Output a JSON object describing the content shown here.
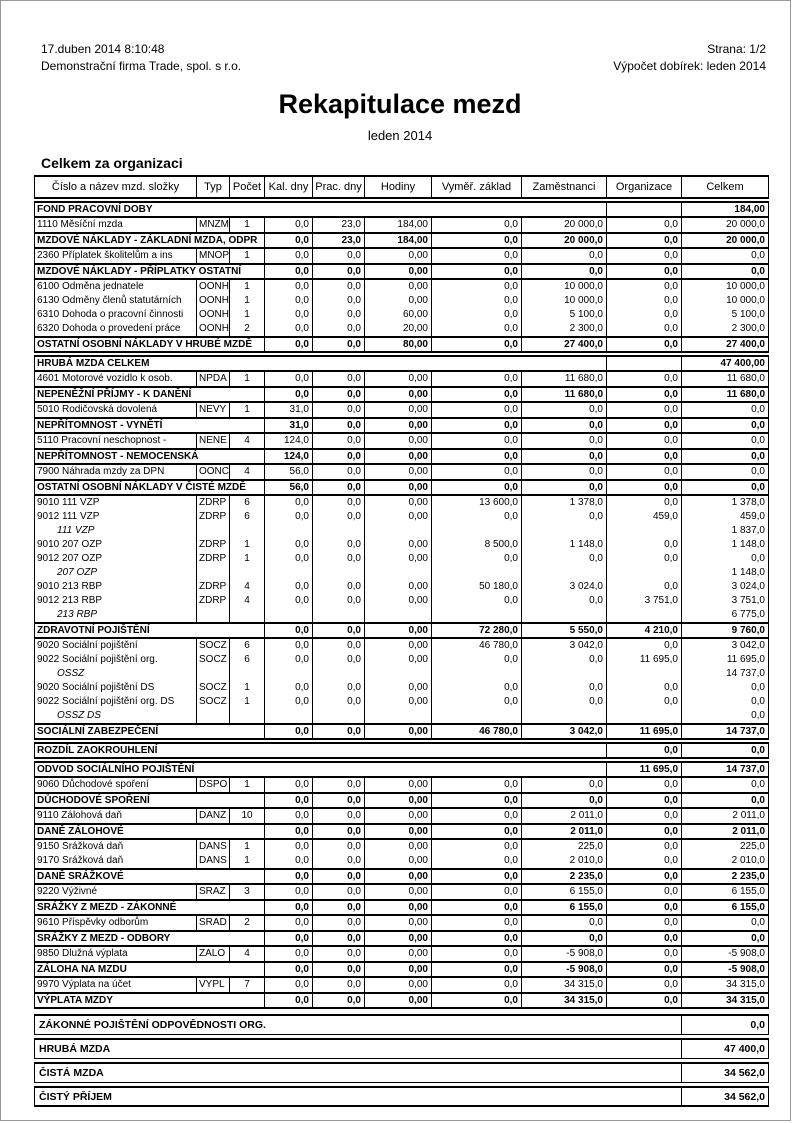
{
  "page": {
    "printed_at": "17.duben 2014  8:10:48",
    "company": "Demonstrační firma Trade, spol. s r.o.",
    "page_label": "Strana: 1/2",
    "calc_label": "Výpočet dobírek: leden 2014",
    "title": "Rekapitulace mezd",
    "subtitle": "leden 2014",
    "section_heading": "Celkem za organizaci"
  },
  "table": {
    "columns": [
      "Číslo a název mzd. složky",
      "Typ",
      "Počet",
      "Kal. dny",
      "Prac. dny",
      "Hodiny",
      "Vyměř. základ",
      "Zaměstnanci",
      "Organizace",
      "Celkem"
    ],
    "rows": [
      {
        "t": "w",
        "name": "FOND PRACOVNÍ DOBY",
        "org": "",
        "cel": "184,00"
      },
      {
        "t": "d",
        "name": "1110 Měsíční mzda",
        "typ": "MNZM",
        "poc": "1",
        "c": [
          "0,0",
          "23,0",
          "184,00",
          "0,0",
          "20 000,0",
          "0,0",
          "20 000,0"
        ]
      },
      {
        "t": "t",
        "name": "MZDOVÉ NÁKLADY - ZÁKLADNÍ MZDA, ODPR",
        "c": [
          "0,0",
          "23,0",
          "184,00",
          "0,0",
          "20 000,0",
          "0,0",
          "20 000,0"
        ]
      },
      {
        "t": "d",
        "name": "2360 Příplatek školitelům a ins",
        "typ": "MNOP",
        "poc": "1",
        "c": [
          "0,0",
          "0,0",
          "0,00",
          "0,0",
          "0,0",
          "0,0",
          "0,0"
        ]
      },
      {
        "t": "t",
        "name": "MZDOVÉ NÁKLADY - PŘÍPLATKY OSTATNÍ",
        "c": [
          "0,0",
          "0,0",
          "0,00",
          "0,0",
          "0,0",
          "0,0",
          "0,0"
        ]
      },
      {
        "t": "d",
        "name": "6100 Odměna jednatele",
        "typ": "OONH",
        "poc": "1",
        "c": [
          "0,0",
          "0,0",
          "0,00",
          "0,0",
          "10 000,0",
          "0,0",
          "10 000,0"
        ]
      },
      {
        "t": "d",
        "name": "6130 Odměny členů statutárních",
        "typ": "OONH",
        "poc": "1",
        "c": [
          "0,0",
          "0,0",
          "0,00",
          "0,0",
          "10 000,0",
          "0,0",
          "10 000,0"
        ]
      },
      {
        "t": "d",
        "name": "6310 Dohoda o pracovní činnosti",
        "typ": "OONH",
        "poc": "1",
        "c": [
          "0,0",
          "0,0",
          "60,00",
          "0,0",
          "5 100,0",
          "0,0",
          "5 100,0"
        ]
      },
      {
        "t": "d",
        "name": "6320 Dohoda o provedení práce",
        "typ": "OONH",
        "poc": "2",
        "c": [
          "0,0",
          "0,0",
          "20,00",
          "0,0",
          "2 300,0",
          "0,0",
          "2 300,0"
        ]
      },
      {
        "t": "t",
        "name": "OSTATNÍ OSOBNÍ NÁKLADY V HRUBÉ MZDĚ",
        "c": [
          "0,0",
          "0,0",
          "80,00",
          "0,0",
          "27 400,0",
          "0,0",
          "27 400,0"
        ]
      },
      {
        "t": "w",
        "name": "HRUBÁ MZDA CELKEM",
        "org": "",
        "cel": "47 400,00"
      },
      {
        "t": "d",
        "name": "4601 Motorové vozidlo k osob.",
        "typ": "NPDA",
        "poc": "1",
        "c": [
          "0,0",
          "0,0",
          "0,00",
          "0,0",
          "11 680,0",
          "0,0",
          "11 680,0"
        ]
      },
      {
        "t": "t",
        "name": "NEPENĚŽNÍ PŘÍJMY - K DANĚNÍ",
        "c": [
          "0,0",
          "0,0",
          "0,00",
          "0,0",
          "11 680,0",
          "0,0",
          "11 680,0"
        ]
      },
      {
        "t": "d",
        "name": "5010 Rodičovská dovolená",
        "typ": "NEVY",
        "poc": "1",
        "c": [
          "31,0",
          "0,0",
          "0,00",
          "0,0",
          "0,0",
          "0,0",
          "0,0"
        ]
      },
      {
        "t": "t",
        "name": "NEPŘÍTOMNOST - VYNĚTÍ",
        "c": [
          "31,0",
          "0,0",
          "0,00",
          "0,0",
          "0,0",
          "0,0",
          "0,0"
        ]
      },
      {
        "t": "d",
        "name": "5110 Pracovní neschopnost - ",
        "typ": "NENE",
        "poc": "4",
        "c": [
          "124,0",
          "0,0",
          "0,00",
          "0,0",
          "0,0",
          "0,0",
          "0,0"
        ]
      },
      {
        "t": "t",
        "name": "NEPŘÍTOMNOST - NEMOCENSKÁ",
        "c": [
          "124,0",
          "0,0",
          "0,00",
          "0,0",
          "0,0",
          "0,0",
          "0,0"
        ]
      },
      {
        "t": "d",
        "name": "7900 Náhrada mzdy za DPN",
        "typ": "OONC",
        "poc": "4",
        "c": [
          "56,0",
          "0,0",
          "0,00",
          "0,0",
          "0,0",
          "0,0",
          "0,0"
        ]
      },
      {
        "t": "t",
        "name": "OSTATNÍ OSOBNÍ NÁKLADY V ČISTÉ MZDĚ",
        "c": [
          "56,0",
          "0,0",
          "0,00",
          "0,0",
          "0,0",
          "0,0",
          "0,0"
        ]
      },
      {
        "t": "d",
        "name": "9010 111 VZP",
        "typ": "ZDRP",
        "poc": "6",
        "c": [
          "0,0",
          "0,0",
          "0,00",
          "13 600,0",
          "1 378,0",
          "0,0",
          "1 378,0"
        ]
      },
      {
        "t": "d",
        "name": "9012 111 VZP",
        "typ": "ZDRP",
        "poc": "6",
        "c": [
          "0,0",
          "0,0",
          "0,00",
          "0,0",
          "0,0",
          "459,0",
          "459,0"
        ]
      },
      {
        "t": "i",
        "name": "111 VZP",
        "cel": "1 837,0"
      },
      {
        "t": "d",
        "name": "9010 207 OZP",
        "typ": "ZDRP",
        "poc": "1",
        "c": [
          "0,0",
          "0,0",
          "0,00",
          "8 500,0",
          "1 148,0",
          "0,0",
          "1 148,0"
        ]
      },
      {
        "t": "d",
        "name": "9012 207 OZP",
        "typ": "ZDRP",
        "poc": "1",
        "c": [
          "0,0",
          "0,0",
          "0,00",
          "0,0",
          "0,0",
          "0,0",
          "0,0"
        ]
      },
      {
        "t": "i",
        "name": "207 OZP",
        "cel": "1 148,0"
      },
      {
        "t": "d",
        "name": "9010 213 RBP",
        "typ": "ZDRP",
        "poc": "4",
        "c": [
          "0,0",
          "0,0",
          "0,00",
          "50 180,0",
          "3 024,0",
          "0,0",
          "3 024,0"
        ]
      },
      {
        "t": "d",
        "name": "9012 213 RBP",
        "typ": "ZDRP",
        "poc": "4",
        "c": [
          "0,0",
          "0,0",
          "0,00",
          "0,0",
          "0,0",
          "3 751,0",
          "3 751,0"
        ]
      },
      {
        "t": "i",
        "name": "213 RBP",
        "cel": "6 775,0"
      },
      {
        "t": "t",
        "name": "ZDRAVOTNÍ POJIŠTĚNÍ",
        "c": [
          "0,0",
          "0,0",
          "0,00",
          "72 280,0",
          "5 550,0",
          "4 210,0",
          "9 760,0"
        ]
      },
      {
        "t": "d",
        "name": "9020 Sociální pojištění",
        "typ": "SOCZ",
        "poc": "6",
        "c": [
          "0,0",
          "0,0",
          "0,00",
          "46 780,0",
          "3 042,0",
          "0,0",
          "3 042,0"
        ]
      },
      {
        "t": "d",
        "name": "9022 Sociální pojištění org.",
        "typ": "SOCZ",
        "poc": "6",
        "c": [
          "0,0",
          "0,0",
          "0,00",
          "0,0",
          "0,0",
          "11 695,0",
          "11 695,0"
        ]
      },
      {
        "t": "i",
        "name": "OSSZ",
        "cel": "14 737,0"
      },
      {
        "t": "d",
        "name": "9020 Sociální pojištění DS",
        "typ": "SOCZ",
        "poc": "1",
        "c": [
          "0,0",
          "0,0",
          "0,00",
          "0,0",
          "0,0",
          "0,0",
          "0,0"
        ]
      },
      {
        "t": "d",
        "name": "9022 Sociální pojištění org. DS",
        "typ": "SOCZ",
        "poc": "1",
        "c": [
          "0,0",
          "0,0",
          "0,00",
          "0,0",
          "0,0",
          "0,0",
          "0,0"
        ]
      },
      {
        "t": "i",
        "name": "OSSZ DS",
        "cel": "0,0"
      },
      {
        "t": "t",
        "name": "SOCIÁLNÍ ZABEZPEČENÍ",
        "c": [
          "0,0",
          "0,0",
          "0,00",
          "46 780,0",
          "3 042,0",
          "11 695,0",
          "14 737,0"
        ]
      },
      {
        "t": "w",
        "name": "ROZDÍL ZAOKROUHLENÍ",
        "org": "0,0",
        "cel": "0,0"
      },
      {
        "t": "w",
        "name": "ODVOD SOCIÁLNÍHO POJIŠTĚNÍ",
        "org": "11 695,0",
        "cel": "14 737,0"
      },
      {
        "t": "d",
        "name": "9060 Důchodové spoření",
        "typ": "DSPO",
        "poc": "1",
        "c": [
          "0,0",
          "0,0",
          "0,00",
          "0,0",
          "0,0",
          "0,0",
          "0,0"
        ]
      },
      {
        "t": "t",
        "name": "DŮCHODOVÉ SPOŘENÍ",
        "c": [
          "0,0",
          "0,0",
          "0,00",
          "0,0",
          "0,0",
          "0,0",
          "0,0"
        ]
      },
      {
        "t": "d",
        "name": "9110 Zálohová daň",
        "typ": "DANZ",
        "poc": "10",
        "c": [
          "0,0",
          "0,0",
          "0,00",
          "0,0",
          "2 011,0",
          "0,0",
          "2 011,0"
        ]
      },
      {
        "t": "t",
        "name": "DANĚ ZÁLOHOVÉ",
        "c": [
          "0,0",
          "0,0",
          "0,00",
          "0,0",
          "2 011,0",
          "0,0",
          "2 011,0"
        ]
      },
      {
        "t": "d",
        "name": "9150 Srážková daň",
        "typ": "DANS",
        "poc": "1",
        "c": [
          "0,0",
          "0,0",
          "0,00",
          "0,0",
          "225,0",
          "0,0",
          "225,0"
        ]
      },
      {
        "t": "d",
        "name": "9170 Srážková daň",
        "typ": "DANS",
        "poc": "1",
        "c": [
          "0,0",
          "0,0",
          "0,00",
          "0,0",
          "2 010,0",
          "0,0",
          "2 010,0"
        ]
      },
      {
        "t": "t",
        "name": "DANĚ SRÁŽKOVÉ",
        "c": [
          "0,0",
          "0,0",
          "0,00",
          "0,0",
          "2 235,0",
          "0,0",
          "2 235,0"
        ]
      },
      {
        "t": "d",
        "name": "9220 Výživné",
        "typ": "SRAZ",
        "poc": "3",
        "c": [
          "0,0",
          "0,0",
          "0,00",
          "0,0",
          "6 155,0",
          "0,0",
          "6 155,0"
        ]
      },
      {
        "t": "t",
        "name": "SRÁŽKY Z MEZD - ZÁKONNÉ",
        "c": [
          "0,0",
          "0,0",
          "0,00",
          "0,0",
          "6 155,0",
          "0,0",
          "6 155,0"
        ]
      },
      {
        "t": "d",
        "name": "9610 Příspěvky odborům",
        "typ": "SRAD",
        "poc": "2",
        "c": [
          "0,0",
          "0,0",
          "0,00",
          "0,0",
          "0,0",
          "0,0",
          "0,0"
        ]
      },
      {
        "t": "t",
        "name": "SRÁŽKY Z MEZD - ODBORY",
        "c": [
          "0,0",
          "0,0",
          "0,00",
          "0,0",
          "0,0",
          "0,0",
          "0,0"
        ]
      },
      {
        "t": "d",
        "name": "9850 Dlužná výplata",
        "typ": "ZALO",
        "poc": "4",
        "c": [
          "0,0",
          "0,0",
          "0,00",
          "0,0",
          "-5 908,0",
          "0,0",
          "-5 908,0"
        ]
      },
      {
        "t": "t",
        "name": "ZÁLOHA NA MZDU",
        "c": [
          "0,0",
          "0,0",
          "0,00",
          "0,0",
          "-5 908,0",
          "0,0",
          "-5 908,0"
        ]
      },
      {
        "t": "d",
        "name": "9970 Výplata na účet",
        "typ": "VYPL",
        "poc": "7",
        "c": [
          "0,0",
          "0,0",
          "0,00",
          "0,0",
          "34 315,0",
          "0,0",
          "34 315,0"
        ]
      },
      {
        "t": "t",
        "name": "VÝPLATA MZDY",
        "c": [
          "0,0",
          "0,0",
          "0,00",
          "0,0",
          "34 315,0",
          "0,0",
          "34 315,0"
        ]
      }
    ]
  },
  "footer_rows": [
    {
      "label": "ZÁKONNÉ POJIŠTĚNÍ ODPOVĚDNOSTI ORG.",
      "value": "0,0"
    },
    {
      "label": "HRUBÁ MZDA",
      "value": "47 400,0"
    },
    {
      "label": "ČISTÁ MZDA",
      "value": "34 562,0"
    },
    {
      "label": "ČISTÝ PŘÍJEM",
      "value": "34 562,0"
    }
  ]
}
